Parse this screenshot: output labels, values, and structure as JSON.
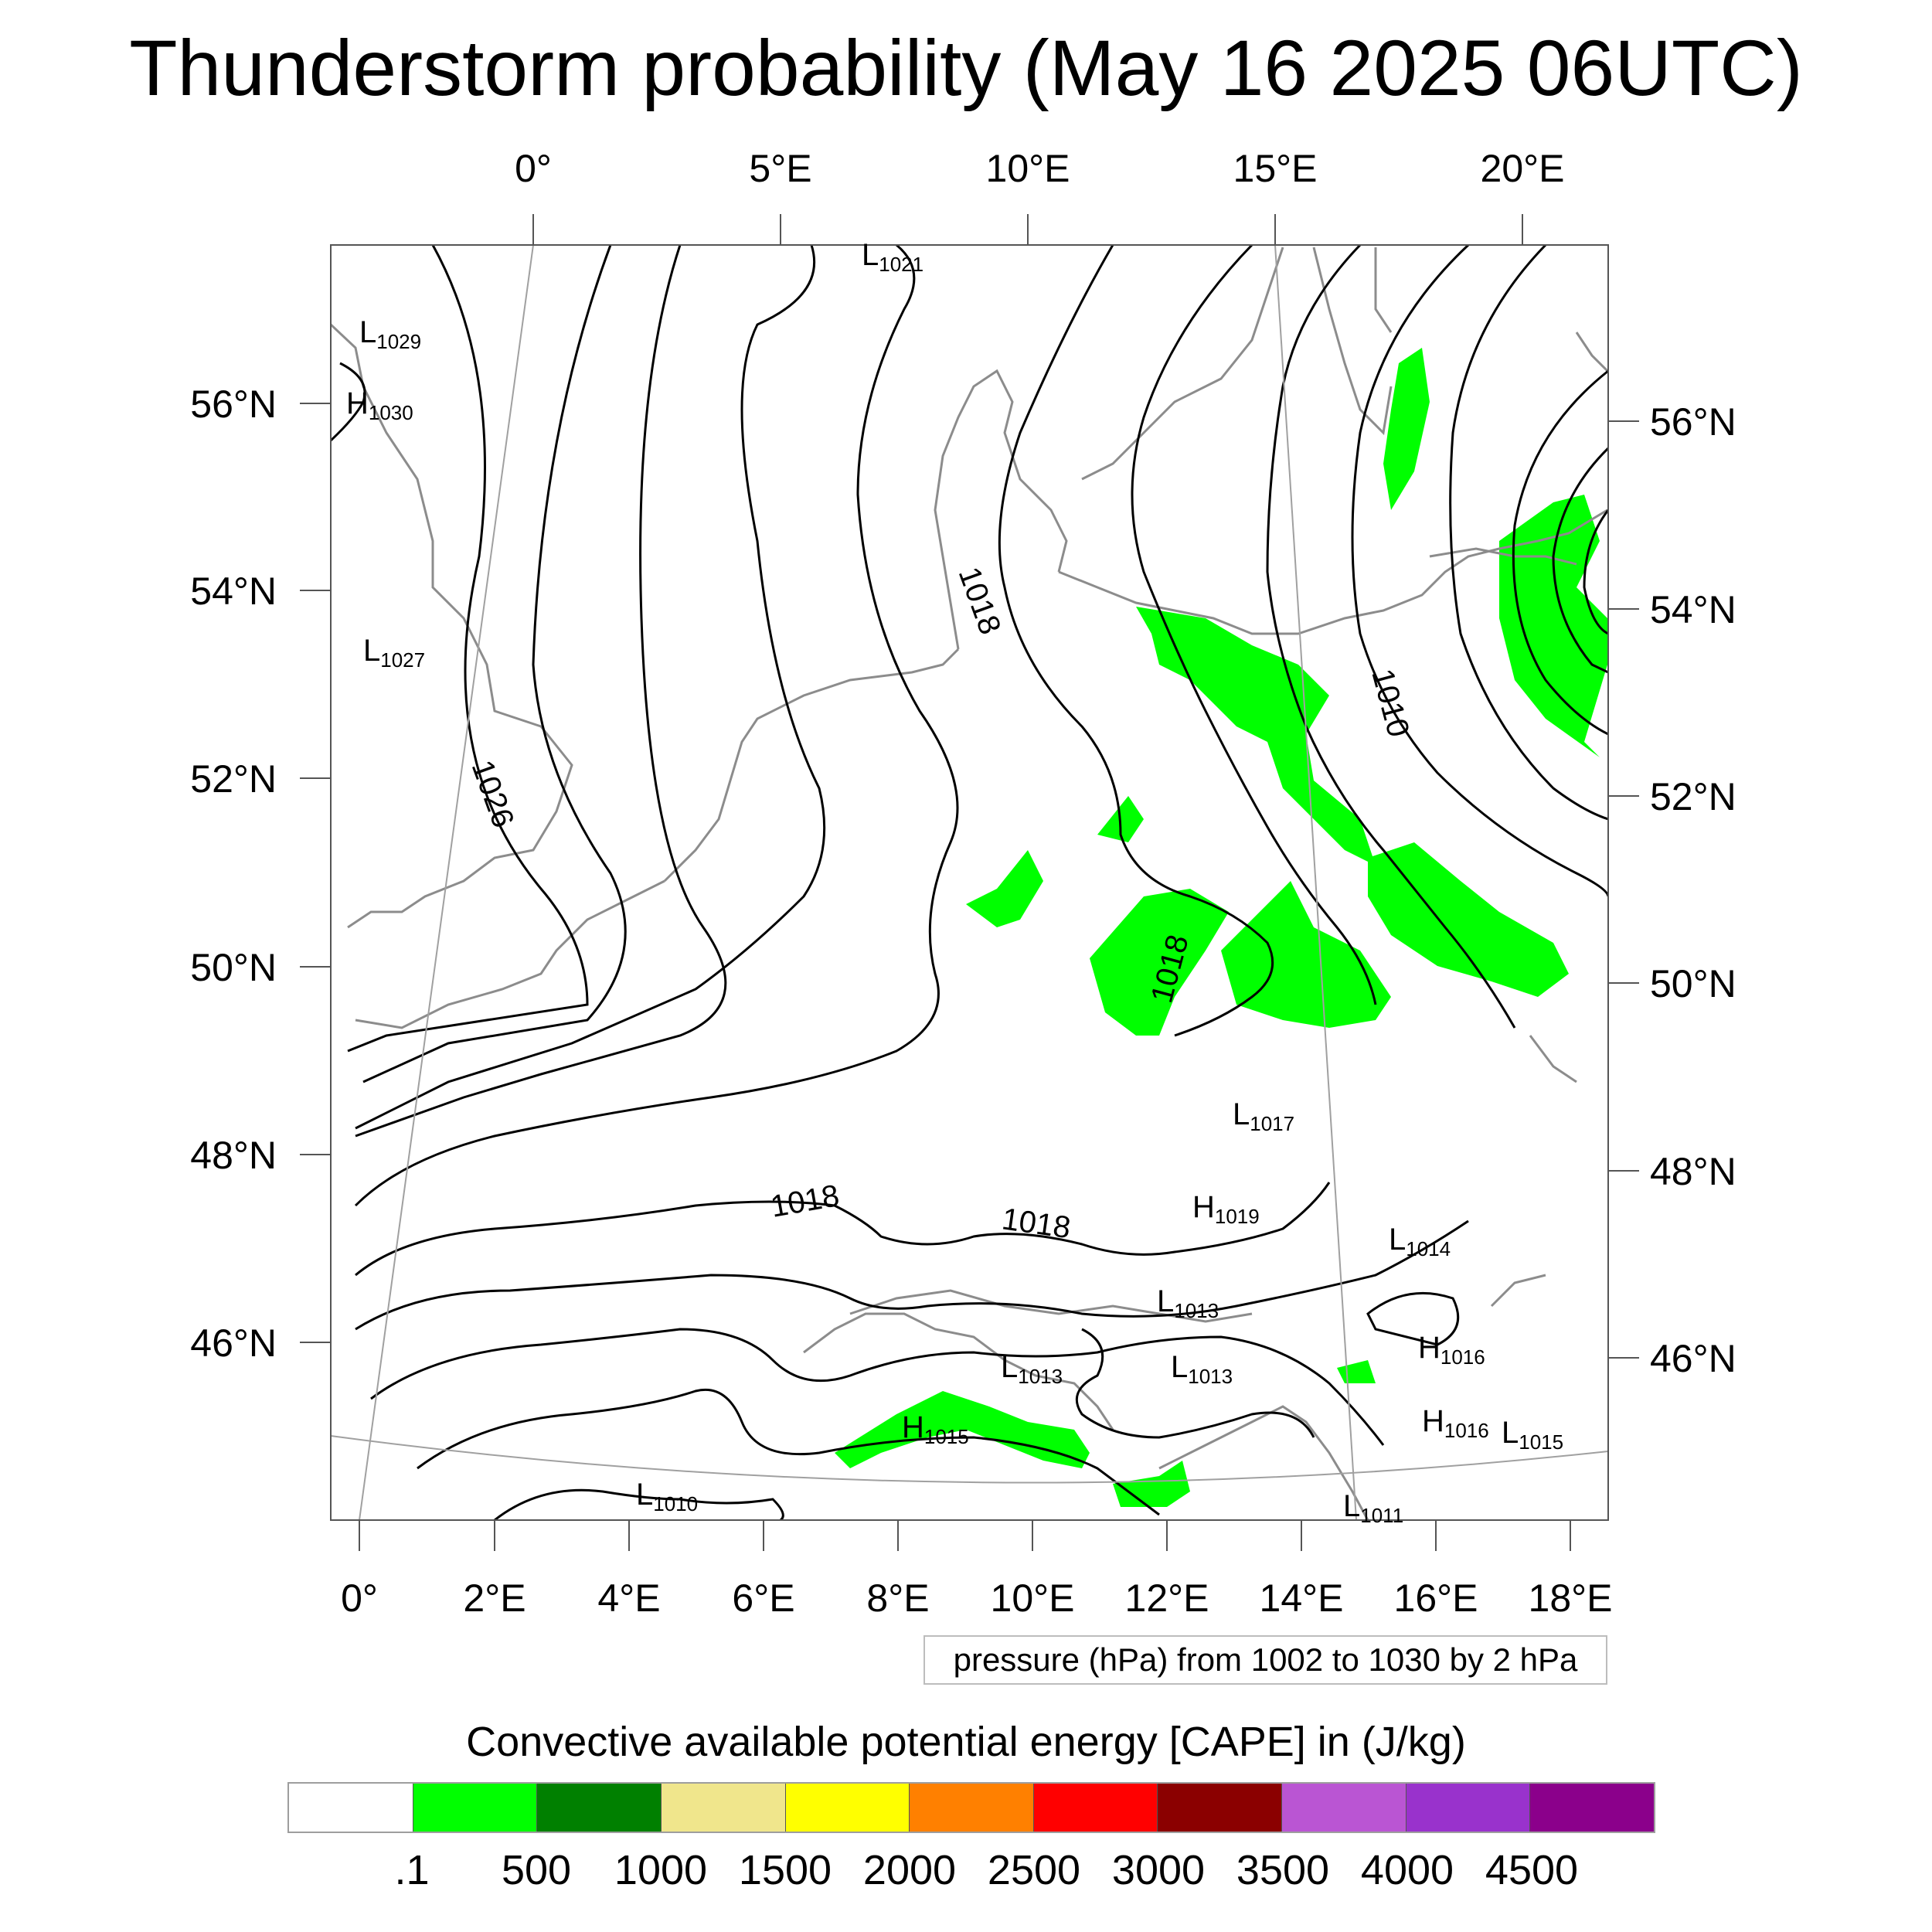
{
  "title": "Thunderstorm probability (May 16 2025 06UTC)",
  "map": {
    "top_lon_labels": [
      "0°",
      "5°E",
      "10°E",
      "15°E",
      "20°E"
    ],
    "bottom_lon_labels": [
      "0°",
      "2°E",
      "4°E",
      "6°E",
      "8°E",
      "10°E",
      "12°E",
      "14°E",
      "16°E",
      "18°E"
    ],
    "left_lat_labels": [
      "56°N",
      "54°N",
      "52°N",
      "50°N",
      "48°N",
      "46°N"
    ],
    "right_lat_labels": [
      "56°N",
      "54°N",
      "52°N",
      "50°N",
      "48°N",
      "46°N"
    ],
    "contour_labels": [
      "1018",
      "1018",
      "1010",
      "1026",
      "1018",
      "1018"
    ],
    "pressure_centers": [
      {
        "letter": "L",
        "value": "1021"
      },
      {
        "letter": "L",
        "value": "1029"
      },
      {
        "letter": "H",
        "value": "1030"
      },
      {
        "letter": "L",
        "value": "1027"
      },
      {
        "letter": "L",
        "value": "1017"
      },
      {
        "letter": "H",
        "value": "1019"
      },
      {
        "letter": "L",
        "value": "1014"
      },
      {
        "letter": "L",
        "value": "1013"
      },
      {
        "letter": "H",
        "value": "1016"
      },
      {
        "letter": "L",
        "value": "1013"
      },
      {
        "letter": "L",
        "value": "1013"
      },
      {
        "letter": "H",
        "value": "1015"
      },
      {
        "letter": "H",
        "value": "1016"
      },
      {
        "letter": "L",
        "value": "1015"
      },
      {
        "letter": "L",
        "value": "1010"
      },
      {
        "letter": "L",
        "value": "1011"
      }
    ],
    "colors": {
      "cape_fill": "#00ff00",
      "isobar": "#000000",
      "coastline": "#8c8c8c",
      "graticule": "#a0a0a0"
    }
  },
  "pressure_note": "pressure (hPa) from 1002 to 1030 by 2 hPa",
  "cape_title": "Convective available potential energy [CAPE] in (J/kg)",
  "colorbar": {
    "colors": [
      "#ffffff",
      "#00ff00",
      "#008000",
      "#f0e68c",
      "#ffff00",
      "#ff8000",
      "#ff0000",
      "#8b0000",
      "#ba55d3",
      "#9932cc",
      "#8b008b"
    ],
    "labels": [
      ".1",
      "500",
      "1000",
      "1500",
      "2000",
      "2500",
      "3000",
      "3500",
      "4000",
      "4500"
    ]
  }
}
